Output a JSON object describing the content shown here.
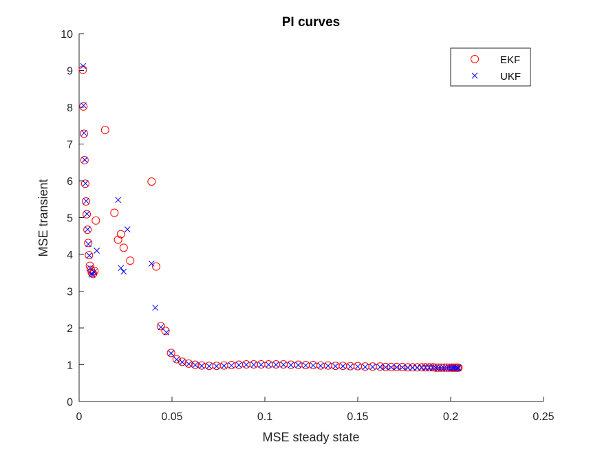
{
  "chart_data": {
    "type": "scatter",
    "title": "PI curves",
    "xlabel": "MSE steady state",
    "ylabel": "MSE transient",
    "xlim": [
      0,
      0.25
    ],
    "ylim": [
      0,
      10
    ],
    "xticks": [
      "0",
      "0.05",
      "0.1",
      "0.15",
      "0.2",
      "0.25"
    ],
    "yticks": [
      "0",
      "1",
      "2",
      "3",
      "4",
      "5",
      "6",
      "7",
      "8",
      "9",
      "10"
    ],
    "grid": false,
    "legend": {
      "position": "top-right"
    },
    "series": [
      {
        "name": "EKF",
        "marker": "circle",
        "color": "#ff0000",
        "x": [
          0.002,
          0.0023,
          0.0026,
          0.0029,
          0.0033,
          0.0037,
          0.0041,
          0.0045,
          0.0049,
          0.0053,
          0.0058,
          0.0063,
          0.0069,
          0.0075,
          0.0082,
          0.009,
          0.014,
          0.019,
          0.021,
          0.0225,
          0.024,
          0.0275,
          0.039,
          0.0415,
          0.044,
          0.0465,
          0.0495,
          0.0525,
          0.0555,
          0.059,
          0.0625,
          0.066,
          0.07,
          0.074,
          0.078,
          0.082,
          0.086,
          0.09,
          0.094,
          0.098,
          0.102,
          0.106,
          0.11,
          0.114,
          0.118,
          0.122,
          0.126,
          0.13,
          0.134,
          0.138,
          0.142,
          0.146,
          0.15,
          0.154,
          0.158,
          0.162,
          0.165,
          0.168,
          0.171,
          0.174,
          0.177,
          0.1795,
          0.182,
          0.1845,
          0.1865,
          0.1885,
          0.1905,
          0.192,
          0.1935,
          0.195,
          0.1965,
          0.198,
          0.1992,
          0.2003,
          0.2013,
          0.2022,
          0.203,
          0.2037,
          0.2042
        ],
        "y": [
          9.02,
          8.02,
          7.28,
          6.56,
          5.92,
          5.44,
          5.09,
          4.67,
          4.31,
          3.98,
          3.69,
          3.58,
          3.5,
          3.47,
          3.55,
          4.92,
          7.38,
          5.13,
          4.4,
          4.55,
          4.18,
          3.83,
          5.98,
          3.67,
          2.05,
          1.92,
          1.32,
          1.15,
          1.08,
          1.03,
          1.0,
          0.98,
          0.97,
          0.97,
          0.98,
          0.99,
          1.0,
          1.01,
          1.01,
          1.01,
          1.01,
          1.01,
          1.01,
          1.0,
          1.0,
          0.99,
          0.99,
          0.98,
          0.98,
          0.97,
          0.97,
          0.96,
          0.96,
          0.95,
          0.95,
          0.95,
          0.94,
          0.94,
          0.94,
          0.94,
          0.93,
          0.93,
          0.93,
          0.93,
          0.93,
          0.93,
          0.93,
          0.92,
          0.92,
          0.92,
          0.92,
          0.92,
          0.92,
          0.92,
          0.92,
          0.92,
          0.92,
          0.92,
          0.92
        ]
      },
      {
        "name": "UKF",
        "marker": "x",
        "color": "#0000ff",
        "x": [
          0.0022,
          0.0024,
          0.0027,
          0.003,
          0.0034,
          0.0038,
          0.0042,
          0.0046,
          0.005,
          0.0055,
          0.006,
          0.0066,
          0.0072,
          0.008,
          0.0095,
          0.021,
          0.0225,
          0.024,
          0.026,
          0.039,
          0.041,
          0.044,
          0.047,
          0.0495,
          0.0525,
          0.0555,
          0.059,
          0.0625,
          0.066,
          0.07,
          0.074,
          0.078,
          0.082,
          0.086,
          0.09,
          0.094,
          0.098,
          0.102,
          0.106,
          0.11,
          0.114,
          0.118,
          0.122,
          0.126,
          0.13,
          0.134,
          0.138,
          0.142,
          0.146,
          0.15,
          0.154,
          0.158,
          0.162,
          0.165,
          0.168,
          0.171,
          0.174,
          0.177,
          0.1795,
          0.182,
          0.1845,
          0.1865,
          0.1885,
          0.1905,
          0.192,
          0.1935,
          0.195,
          0.1965,
          0.198,
          0.1992,
          0.2003,
          0.2013,
          0.2022,
          0.203,
          0.2037,
          0.2042
        ],
        "y": [
          9.12,
          8.05,
          7.3,
          6.57,
          5.93,
          5.45,
          5.1,
          4.68,
          4.28,
          3.97,
          3.63,
          3.47,
          3.45,
          3.52,
          4.1,
          5.48,
          3.63,
          3.53,
          4.68,
          3.75,
          2.55,
          2.02,
          1.88,
          1.31,
          1.14,
          1.07,
          1.02,
          0.99,
          0.97,
          0.96,
          0.96,
          0.97,
          0.98,
          0.99,
          1.0,
          1.0,
          1.0,
          1.0,
          1.0,
          1.0,
          0.99,
          0.99,
          0.98,
          0.98,
          0.97,
          0.97,
          0.96,
          0.96,
          0.95,
          0.95,
          0.94,
          0.94,
          0.94,
          0.93,
          0.93,
          0.93,
          0.93,
          0.92,
          0.92,
          0.92,
          0.92,
          0.92,
          0.92,
          0.92,
          0.92,
          0.91,
          0.91,
          0.91,
          0.91,
          0.91,
          0.91,
          0.91,
          0.91,
          0.91,
          0.91,
          0.91
        ]
      }
    ]
  }
}
